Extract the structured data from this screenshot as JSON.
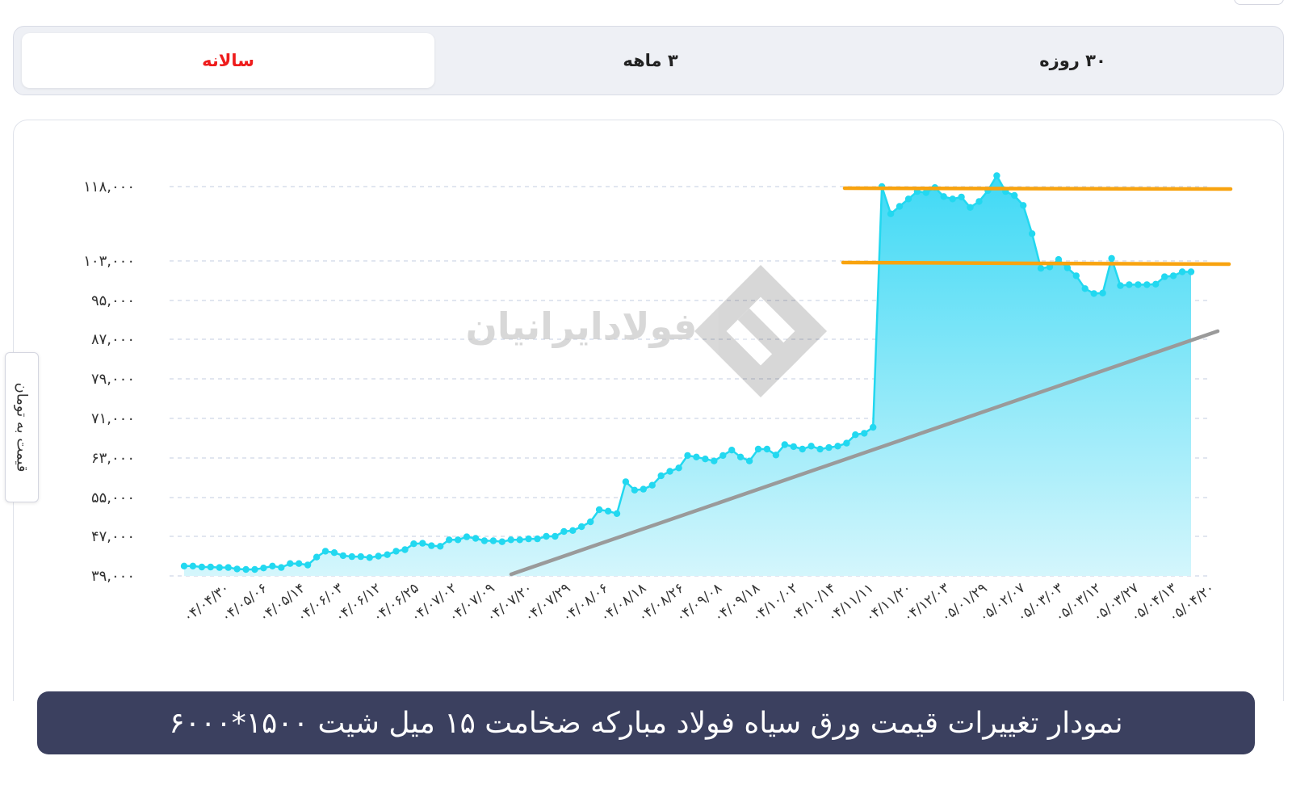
{
  "tabs": [
    {
      "key": "annual",
      "label": "سالانه",
      "active": true
    },
    {
      "key": "3m",
      "label": "۳ ماهه",
      "active": false
    },
    {
      "key": "30d",
      "label": "۳۰ روزه",
      "active": false
    }
  ],
  "watermark": "فولادایرانیان",
  "caption": "نمودار تغییرات قیمت ورق سیاه فولاد مبارکه ضخامت ۱۵ میل شیت ۱۵۰۰*۶۰۰۰",
  "colors": {
    "accent_active_tab": "#ee1c1c",
    "series_line": "#22d8f0",
    "area_top": "#3fd9f5",
    "area_bottom": "#d4f6fc",
    "resistance_lines": "#f8a30f",
    "trend_line": "#9a9a9a",
    "caption_bg": "#3b405f"
  },
  "chart_data": {
    "type": "area",
    "ylabel": "قیمت به تومان",
    "y_ticks": [
      {
        "value": 39000,
        "label": "۳۹,۰۰۰"
      },
      {
        "value": 47000,
        "label": "۴۷,۰۰۰"
      },
      {
        "value": 55000,
        "label": "۵۵,۰۰۰"
      },
      {
        "value": 63000,
        "label": "۶۳,۰۰۰"
      },
      {
        "value": 71000,
        "label": "۷۱,۰۰۰"
      },
      {
        "value": 79000,
        "label": "۷۹,۰۰۰"
      },
      {
        "value": 87000,
        "label": "۸۷,۰۰۰"
      },
      {
        "value": 95000,
        "label": "۹۵,۰۰۰"
      },
      {
        "value": 103000,
        "label": "۱۰۳,۰۰۰"
      },
      {
        "value": 118000,
        "label": "۱۱۸,۰۰۰"
      }
    ],
    "x_labels": [
      "۰۴/۰۴/۳۰",
      "۰۴/۰۵/۰۶",
      "۰۴/۰۵/۱۴",
      "۰۴/۰۶/۰۳",
      "۰۴/۰۶/۱۲",
      "۰۴/۰۶/۲۵",
      "۰۴/۰۷/۰۲",
      "۰۴/۰۷/۰۹",
      "۰۴/۰۷/۲۰",
      "۰۴/۰۷/۲۹",
      "۰۴/۰۸/۰۶",
      "۰۴/۰۸/۱۸",
      "۰۴/۰۸/۲۶",
      "۰۴/۰۹/۰۸",
      "۰۴/۰۹/۱۸",
      "۰۴/۱۰/۰۲",
      "۰۴/۱۰/۱۴",
      "۰۴/۱۱/۱۱",
      "۰۴/۱۱/۲۰",
      "۰۴/۱۲/۰۳",
      "۰۵/۰۱/۲۹",
      "۰۵/۰۲/۰۷",
      "۰۵/۰۳/۰۳",
      "۰۵/۰۳/۱۲",
      "۰۵/۰۳/۲۷",
      "۰۵/۰۴/۱۳",
      "۰۵/۰۴/۲۰"
    ],
    "series": [
      {
        "values": [
          41000,
          41000,
          40800,
          40800,
          40700,
          40700,
          40400,
          40300,
          40300,
          40600,
          41000,
          40700,
          41500,
          41500,
          41200,
          42800,
          44000,
          43700,
          43100,
          42900,
          42900,
          42700,
          43000,
          43300,
          44000,
          44300,
          45500,
          45600,
          45100,
          45000,
          46300,
          46300,
          46900,
          46600,
          46100,
          46100,
          45900,
          46300,
          46300,
          46500,
          46500,
          47000,
          47000,
          48000,
          48200,
          49000,
          50000,
          52500,
          52200,
          51700,
          58200,
          56500,
          56700,
          57500,
          59400,
          60300,
          61000,
          63500,
          63200,
          62800,
          62400,
          63500,
          64600,
          63200,
          62400,
          64800,
          64800,
          63600,
          65700,
          65300,
          64800,
          65400,
          64800,
          65100,
          65400,
          66000,
          67700,
          68000,
          69200,
          118000,
          118000,
          118000,
          118000,
          118000,
          118000,
          118000,
          118000,
          118000,
          118000,
          118000,
          118000,
          120200,
          118000,
          117500,
          106000,
          97300,
          96400,
          96500,
          101800,
          103300,
          101600,
          100000,
          97400,
          96400,
          96500,
          103500,
          98000,
          98200,
          98200,
          98200,
          98300,
          99800,
          100000,
          100800,
          100800
        ],
        "y_scale": [
          {
            "value": 110000,
            "label": ""
          },
          {
            "value": 115000,
            "label": ""
          }
        ]
      }
    ],
    "horizontal_lines": [
      117500,
      102000
    ],
    "trend_line": {
      "from_index": 40,
      "from_value": 40000,
      "to_index": 115,
      "to_value": 87000
    },
    "grid": true
  }
}
